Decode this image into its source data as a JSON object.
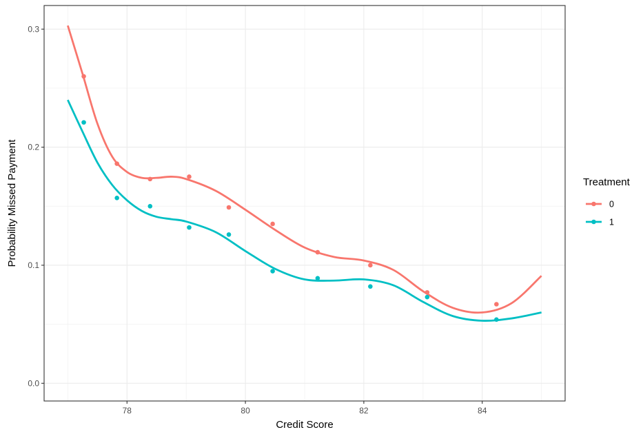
{
  "chart_data": {
    "type": "scatter",
    "xlabel": "Credit Score",
    "ylabel": "Probability Missed Payment",
    "xlim": [
      76.6,
      85.4
    ],
    "ylim": [
      -0.015,
      0.32
    ],
    "x_ticks": [
      78,
      80,
      82,
      84
    ],
    "y_ticks": [
      0.0,
      0.1,
      0.2,
      0.3
    ],
    "x_tick_labels": [
      "78",
      "80",
      "82",
      "84"
    ],
    "y_tick_labels": [
      "0.0",
      "0.1",
      "0.2",
      "0.3"
    ],
    "grid": true,
    "legend": {
      "title": "Treatment",
      "placement": "right"
    },
    "series": [
      {
        "name": "0",
        "color": "#F8766D",
        "points": [
          {
            "x": 77.27,
            "y": 0.26
          },
          {
            "x": 77.83,
            "y": 0.186
          },
          {
            "x": 78.39,
            "y": 0.173
          },
          {
            "x": 79.05,
            "y": 0.175
          },
          {
            "x": 79.72,
            "y": 0.149
          },
          {
            "x": 80.46,
            "y": 0.135
          },
          {
            "x": 81.22,
            "y": 0.111
          },
          {
            "x": 82.11,
            "y": 0.1
          },
          {
            "x": 83.07,
            "y": 0.077
          },
          {
            "x": 84.24,
            "y": 0.067
          }
        ],
        "smooth": [
          {
            "x": 77.0,
            "y": 0.303
          },
          {
            "x": 77.25,
            "y": 0.262
          },
          {
            "x": 77.5,
            "y": 0.22
          },
          {
            "x": 77.75,
            "y": 0.192
          },
          {
            "x": 78.0,
            "y": 0.179
          },
          {
            "x": 78.25,
            "y": 0.174
          },
          {
            "x": 78.5,
            "y": 0.174
          },
          {
            "x": 78.75,
            "y": 0.175
          },
          {
            "x": 79.0,
            "y": 0.173
          },
          {
            "x": 79.5,
            "y": 0.163
          },
          {
            "x": 80.0,
            "y": 0.147
          },
          {
            "x": 80.5,
            "y": 0.13
          },
          {
            "x": 81.0,
            "y": 0.115
          },
          {
            "x": 81.5,
            "y": 0.107
          },
          {
            "x": 82.0,
            "y": 0.104
          },
          {
            "x": 82.5,
            "y": 0.096
          },
          {
            "x": 83.0,
            "y": 0.078
          },
          {
            "x": 83.5,
            "y": 0.064
          },
          {
            "x": 84.0,
            "y": 0.06
          },
          {
            "x": 84.5,
            "y": 0.068
          },
          {
            "x": 85.0,
            "y": 0.091
          }
        ]
      },
      {
        "name": "1",
        "color": "#00BFC4",
        "points": [
          {
            "x": 77.27,
            "y": 0.221
          },
          {
            "x": 77.83,
            "y": 0.157
          },
          {
            "x": 78.39,
            "y": 0.15
          },
          {
            "x": 79.05,
            "y": 0.132
          },
          {
            "x": 79.72,
            "y": 0.126
          },
          {
            "x": 80.46,
            "y": 0.095
          },
          {
            "x": 81.22,
            "y": 0.089
          },
          {
            "x": 82.11,
            "y": 0.082
          },
          {
            "x": 83.07,
            "y": 0.073
          },
          {
            "x": 84.24,
            "y": 0.054
          }
        ],
        "smooth": [
          {
            "x": 77.0,
            "y": 0.24
          },
          {
            "x": 77.25,
            "y": 0.213
          },
          {
            "x": 77.5,
            "y": 0.187
          },
          {
            "x": 77.75,
            "y": 0.168
          },
          {
            "x": 78.0,
            "y": 0.155
          },
          {
            "x": 78.25,
            "y": 0.146
          },
          {
            "x": 78.5,
            "y": 0.141
          },
          {
            "x": 78.75,
            "y": 0.139
          },
          {
            "x": 79.0,
            "y": 0.137
          },
          {
            "x": 79.5,
            "y": 0.128
          },
          {
            "x": 80.0,
            "y": 0.112
          },
          {
            "x": 80.5,
            "y": 0.097
          },
          {
            "x": 81.0,
            "y": 0.088
          },
          {
            "x": 81.5,
            "y": 0.087
          },
          {
            "x": 82.0,
            "y": 0.088
          },
          {
            "x": 82.5,
            "y": 0.083
          },
          {
            "x": 83.0,
            "y": 0.069
          },
          {
            "x": 83.5,
            "y": 0.057
          },
          {
            "x": 84.0,
            "y": 0.053
          },
          {
            "x": 84.5,
            "y": 0.055
          },
          {
            "x": 85.0,
            "y": 0.06
          }
        ]
      }
    ]
  }
}
